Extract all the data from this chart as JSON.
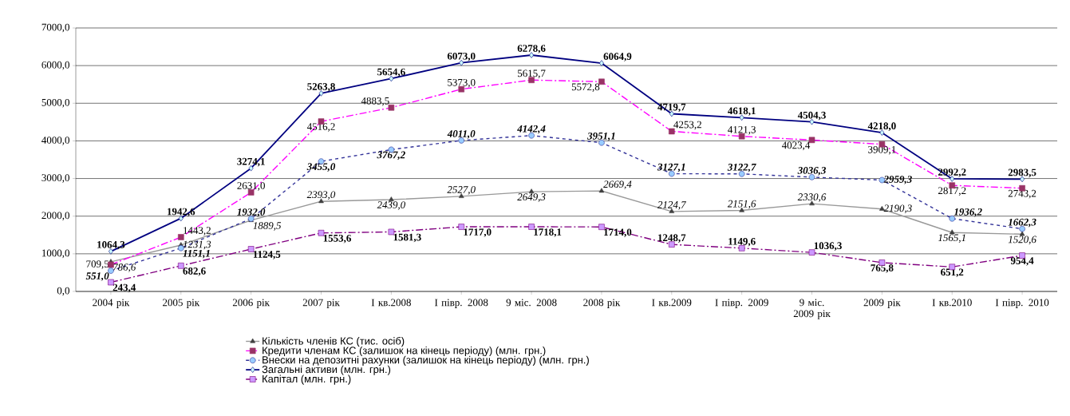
{
  "chart_data": {
    "type": "line",
    "categories": [
      "2004 рік",
      "2005 рік",
      "2006 рік",
      "2007 рік",
      "I кв.2008",
      "I півр. 2008",
      "9 міс. 2008",
      "2008 рік",
      "I кв.2009",
      "I півр. 2009",
      "9 міс. 2009 рік",
      "2009 рік",
      "I кв.2010",
      "I півр. 2010"
    ],
    "series": [
      {
        "name": "Кількість членів КС (тис. осіб)",
        "color": "#999999",
        "marker": "triangle",
        "line_style": "solid",
        "values": [
          786.6,
          1231.3,
          1889.5,
          2393.0,
          2439.0,
          2527.0,
          2649.3,
          2669.4,
          2124.7,
          2151.6,
          2330.6,
          2190.3,
          1565.1,
          1520.6
        ],
        "value_labels": [
          "786,6",
          "1231,3",
          "1889,5",
          "2393,0",
          "2439,0",
          "2527,0",
          "2649,3",
          "2669,4",
          "2124,7",
          "2151,6",
          "2330,6",
          "2190,3",
          "1565,1",
          "1520,6"
        ]
      },
      {
        "name": "Кредити членам КС (залишок на кінець періоду) (млн. грн.)",
        "color": "#ff00ff",
        "marker": "square",
        "line_style": "dashed",
        "values": [
          709.5,
          1443.2,
          2631.0,
          4516.2,
          4883.5,
          5373.0,
          5615.7,
          5572.8,
          4253.2,
          4121.3,
          4023.4,
          3909.1,
          2817.2,
          2743.2
        ],
        "value_labels": [
          "709,5",
          "1443,2",
          "2631,0",
          "4516,2",
          "4883,5",
          "5373,0",
          "5615,7",
          "5572,8",
          "4253,2",
          "4121,3",
          "4023,4",
          "3909,1",
          "2817,2",
          "2743,2"
        ]
      },
      {
        "name": "Внески на депозитні рахунки  (залишок на кінець періоду) (млн. грн.)",
        "color": "#333399",
        "marker": "circle",
        "line_style": "dotted",
        "values": [
          551.0,
          1151.1,
          1932.0,
          3455.0,
          3767.2,
          4011.0,
          4142.4,
          3951.1,
          3127.1,
          3122.7,
          3036.3,
          2959.3,
          1936.2,
          1662.3
        ],
        "value_labels": [
          "551,0",
          "1151,1",
          "1932,0",
          "3455,0",
          "3767,2",
          "4011,0",
          "4142,4",
          "3951,1",
          "3127,1",
          "3122,7",
          "3036,3",
          "2959,3",
          "1936,2",
          "1662,3"
        ]
      },
      {
        "name": "Загальні активи  (млн. грн.)",
        "color": "#000080",
        "marker": "diamond",
        "line_style": "solid",
        "values": [
          1064.3,
          1942.6,
          3274.1,
          5263.8,
          5654.6,
          6073.0,
          6278.6,
          6064.9,
          4719.7,
          4618.1,
          4504.3,
          4218.0,
          2992.2,
          2983.5
        ],
        "value_labels": [
          "1064,3",
          "1942,6",
          "3274,1",
          "5263,8",
          "5654,6",
          "6073,0",
          "6278,6",
          "6064,9",
          "4719,7",
          "4618,1",
          "4504,3",
          "4218,0",
          "2992,2",
          "2983,5"
        ]
      },
      {
        "name": "Капітал (млн. грн.)",
        "color": "#800080",
        "marker": "square",
        "line_style": "dashed",
        "values": [
          243.4,
          682.6,
          1124.5,
          1553.6,
          1581.3,
          1717.0,
          1718.1,
          1714.0,
          1248.7,
          1149.6,
          1036.3,
          765.8,
          651.2,
          954.4
        ],
        "value_labels": [
          "243,4",
          "682,6",
          "1124,5",
          "1553,6",
          "1581,3",
          "1717,0",
          "1718,1",
          "1714,0",
          "1248,7",
          "1149,6",
          "1036,3",
          "765,8",
          "651,2",
          "954,4"
        ]
      }
    ],
    "ylim": [
      0,
      7000
    ],
    "yticks": [
      {
        "value": 0,
        "label": "0,0"
      },
      {
        "value": 1000,
        "label": "1000,0"
      },
      {
        "value": 2000,
        "label": "2000,0"
      },
      {
        "value": 3000,
        "label": "3000,0"
      },
      {
        "value": 4000,
        "label": "4000,0"
      },
      {
        "value": 5000,
        "label": "5000,0"
      },
      {
        "value": 6000,
        "label": "6000,0"
      },
      {
        "value": 7000,
        "label": "7000,0"
      }
    ],
    "grid": "y",
    "legend": "bottom"
  }
}
